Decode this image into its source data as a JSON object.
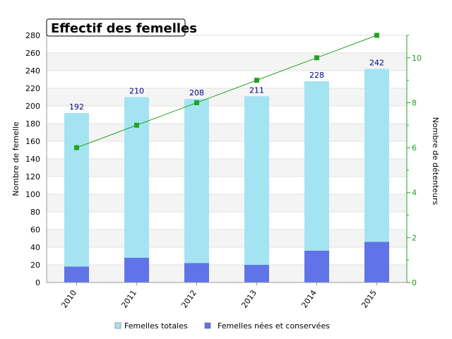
{
  "chart_data": {
    "type": "bar",
    "title": "Effectif des femelles",
    "categories": [
      "2010",
      "2011",
      "2012",
      "2013",
      "2014",
      "2015"
    ],
    "series": [
      {
        "name": "Femelles totales",
        "values": [
          192,
          210,
          208,
          211,
          228,
          242
        ],
        "color": "#a4e4f2"
      },
      {
        "name": "Femelles nées et conservées",
        "values": [
          18,
          28,
          22,
          20,
          36,
          46
        ],
        "color": "#6074e8"
      }
    ],
    "line_series": {
      "values": [
        6,
        7,
        8,
        9,
        10,
        11
      ],
      "color": "#22a422",
      "axis": "right"
    },
    "ylabel": "Nombre de femelle",
    "ylabel_right": "Nombre de détenteurs",
    "ylim": [
      0,
      280
    ],
    "yticks": [
      0,
      20,
      40,
      60,
      80,
      100,
      120,
      140,
      160,
      180,
      200,
      220,
      240,
      260,
      280
    ],
    "ylim_right": [
      0,
      11
    ],
    "yticks_right": [
      0,
      2,
      4,
      6,
      8,
      10
    ],
    "data_labels": [
      "192",
      "210",
      "208",
      "211",
      "228",
      "242"
    ],
    "legend_position": "bottom",
    "grid": true
  }
}
